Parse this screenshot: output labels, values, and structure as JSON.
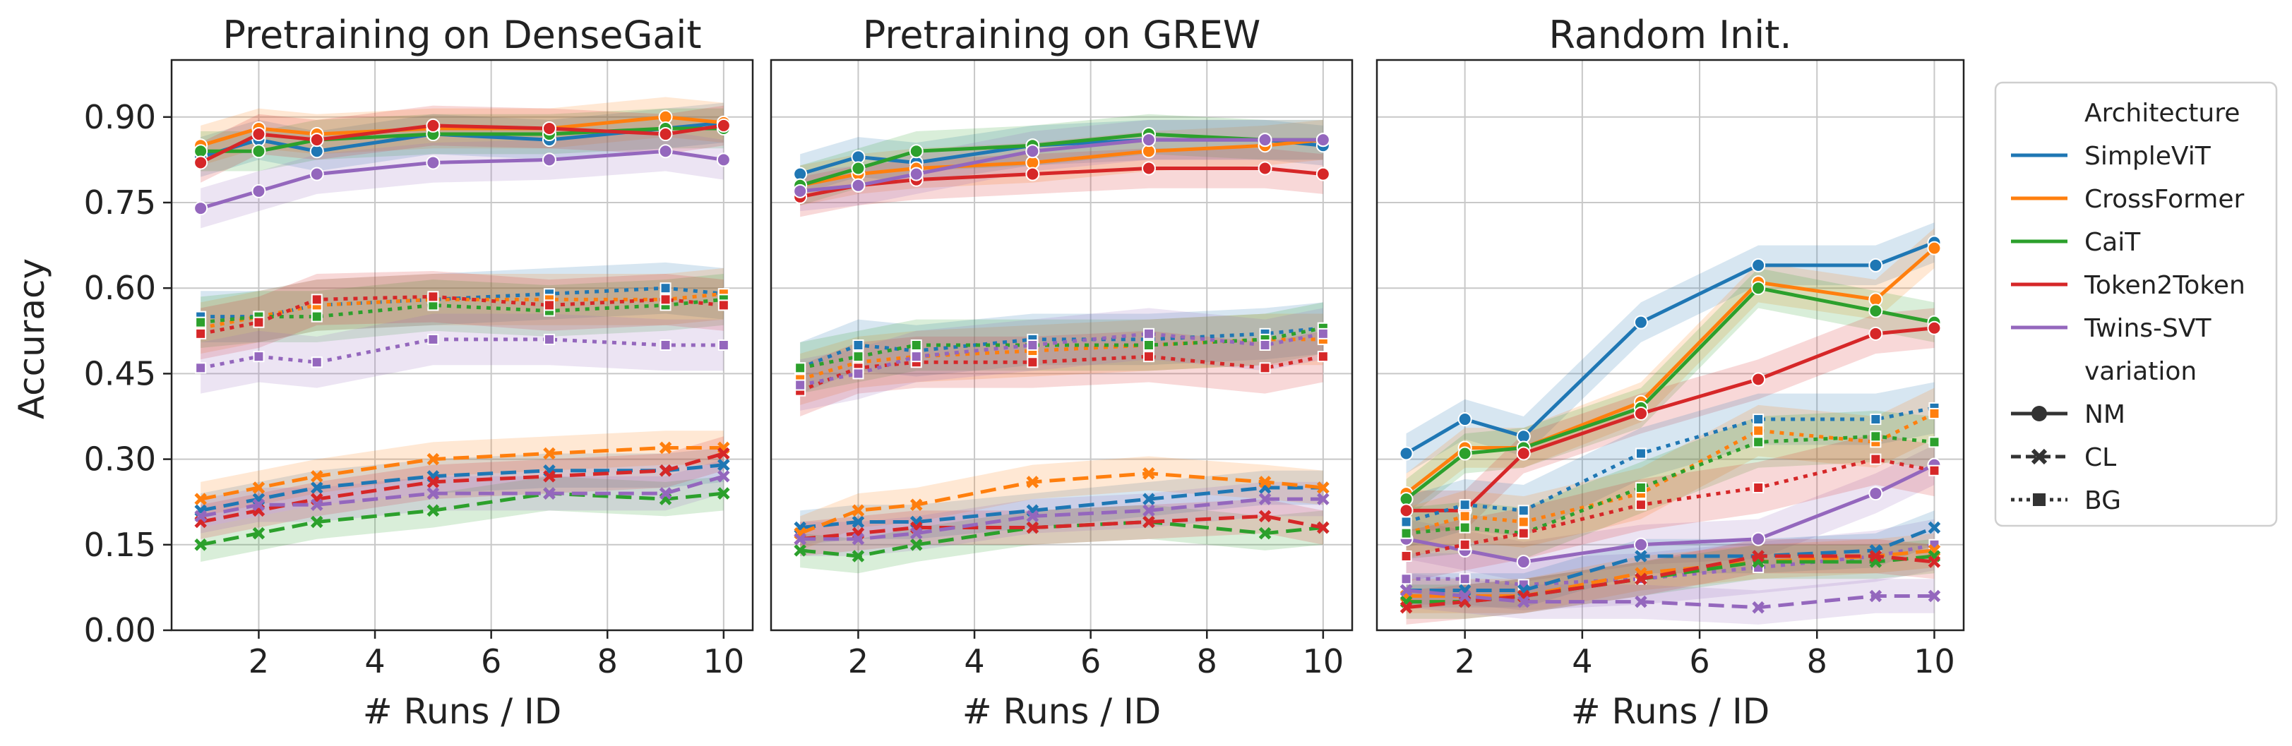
{
  "chart_data": {
    "type": "line",
    "ylabel": "Accuracy",
    "xlabel": "# Runs / ID",
    "x": [
      1,
      2,
      3,
      5,
      7,
      9,
      10
    ],
    "xticks": [
      "2",
      "4",
      "6",
      "8",
      "10"
    ],
    "xlim": [
      0.5,
      10.5
    ],
    "ylim": [
      0.0,
      1.0
    ],
    "yticks": [
      "0.00",
      "0.15",
      "0.30",
      "0.45",
      "0.60",
      "0.75",
      "0.90"
    ],
    "colors": {
      "SimpleViT": "#1f77b4",
      "CrossFormer": "#ff7f0e",
      "CaiT": "#2ca02c",
      "Token2Token": "#d62728",
      "Twins-SVT": "#9467bd"
    },
    "legend": {
      "architecture_title": "Architecture",
      "architectures": [
        "SimpleViT",
        "CrossFormer",
        "CaiT",
        "Token2Token",
        "Twins-SVT"
      ],
      "variation_title": "variation",
      "variations": [
        "NM",
        "CL",
        "BG"
      ]
    },
    "panels": [
      {
        "title": "Pretraining on DenseGait",
        "series": [
          {
            "arch": "SimpleViT",
            "variation": "NM",
            "values": [
              0.83,
              0.86,
              0.84,
              0.87,
              0.86,
              0.88,
              0.89
            ]
          },
          {
            "arch": "CrossFormer",
            "variation": "NM",
            "values": [
              0.85,
              0.88,
              0.87,
              0.88,
              0.88,
              0.9,
              0.89
            ]
          },
          {
            "arch": "CaiT",
            "variation": "NM",
            "values": [
              0.84,
              0.84,
              0.86,
              0.87,
              0.87,
              0.88,
              0.88
            ]
          },
          {
            "arch": "Token2Token",
            "variation": "NM",
            "values": [
              0.82,
              0.87,
              0.86,
              0.885,
              0.88,
              0.87,
              0.885
            ]
          },
          {
            "arch": "Twins-SVT",
            "variation": "NM",
            "values": [
              0.74,
              0.77,
              0.8,
              0.82,
              0.825,
              0.84,
              0.825
            ]
          },
          {
            "arch": "SimpleViT",
            "variation": "BG",
            "values": [
              0.55,
              0.55,
              0.57,
              0.58,
              0.59,
              0.6,
              0.59
            ]
          },
          {
            "arch": "CrossFormer",
            "variation": "BG",
            "values": [
              0.53,
              0.55,
              0.57,
              0.58,
              0.58,
              0.58,
              0.59
            ]
          },
          {
            "arch": "CaiT",
            "variation": "BG",
            "values": [
              0.54,
              0.55,
              0.55,
              0.57,
              0.56,
              0.57,
              0.58
            ]
          },
          {
            "arch": "Token2Token",
            "variation": "BG",
            "values": [
              0.52,
              0.54,
              0.58,
              0.585,
              0.57,
              0.58,
              0.57
            ]
          },
          {
            "arch": "Twins-SVT",
            "variation": "BG",
            "values": [
              0.46,
              0.48,
              0.47,
              0.51,
              0.51,
              0.5,
              0.5
            ]
          },
          {
            "arch": "SimpleViT",
            "variation": "CL",
            "values": [
              0.21,
              0.23,
              0.25,
              0.27,
              0.28,
              0.28,
              0.29
            ]
          },
          {
            "arch": "CrossFormer",
            "variation": "CL",
            "values": [
              0.23,
              0.25,
              0.27,
              0.3,
              0.31,
              0.32,
              0.32
            ]
          },
          {
            "arch": "CaiT",
            "variation": "CL",
            "values": [
              0.15,
              0.17,
              0.19,
              0.21,
              0.24,
              0.23,
              0.24
            ]
          },
          {
            "arch": "Token2Token",
            "variation": "CL",
            "values": [
              0.19,
              0.21,
              0.23,
              0.26,
              0.27,
              0.28,
              0.31
            ]
          },
          {
            "arch": "Twins-SVT",
            "variation": "CL",
            "values": [
              0.2,
              0.22,
              0.22,
              0.24,
              0.24,
              0.24,
              0.27
            ]
          }
        ]
      },
      {
        "title": "Pretraining on GREW",
        "series": [
          {
            "arch": "SimpleViT",
            "variation": "NM",
            "values": [
              0.8,
              0.83,
              0.82,
              0.85,
              0.86,
              0.86,
              0.85
            ]
          },
          {
            "arch": "CrossFormer",
            "variation": "NM",
            "values": [
              0.78,
              0.8,
              0.81,
              0.82,
              0.84,
              0.85,
              0.86
            ]
          },
          {
            "arch": "CaiT",
            "variation": "NM",
            "values": [
              0.78,
              0.81,
              0.84,
              0.85,
              0.87,
              0.86,
              0.86
            ]
          },
          {
            "arch": "Token2Token",
            "variation": "NM",
            "values": [
              0.76,
              0.78,
              0.79,
              0.8,
              0.81,
              0.81,
              0.8
            ]
          },
          {
            "arch": "Twins-SVT",
            "variation": "NM",
            "values": [
              0.77,
              0.78,
              0.8,
              0.84,
              0.86,
              0.86,
              0.86
            ]
          },
          {
            "arch": "SimpleViT",
            "variation": "BG",
            "values": [
              0.46,
              0.5,
              0.49,
              0.51,
              0.51,
              0.52,
              0.53
            ]
          },
          {
            "arch": "CrossFormer",
            "variation": "BG",
            "values": [
              0.44,
              0.47,
              0.48,
              0.49,
              0.5,
              0.51,
              0.51
            ]
          },
          {
            "arch": "CaiT",
            "variation": "BG",
            "values": [
              0.46,
              0.48,
              0.5,
              0.5,
              0.5,
              0.51,
              0.53
            ]
          },
          {
            "arch": "Token2Token",
            "variation": "BG",
            "values": [
              0.42,
              0.46,
              0.47,
              0.47,
              0.48,
              0.46,
              0.48
            ]
          },
          {
            "arch": "Twins-SVT",
            "variation": "BG",
            "values": [
              0.43,
              0.45,
              0.48,
              0.5,
              0.52,
              0.5,
              0.52
            ]
          },
          {
            "arch": "SimpleViT",
            "variation": "CL",
            "values": [
              0.18,
              0.19,
              0.19,
              0.21,
              0.23,
              0.25,
              0.25
            ]
          },
          {
            "arch": "CrossFormer",
            "variation": "CL",
            "values": [
              0.17,
              0.21,
              0.22,
              0.26,
              0.275,
              0.26,
              0.25
            ]
          },
          {
            "arch": "CaiT",
            "variation": "CL",
            "values": [
              0.14,
              0.13,
              0.15,
              0.18,
              0.19,
              0.17,
              0.18
            ]
          },
          {
            "arch": "Token2Token",
            "variation": "CL",
            "values": [
              0.16,
              0.17,
              0.18,
              0.18,
              0.19,
              0.2,
              0.18
            ]
          },
          {
            "arch": "Twins-SVT",
            "variation": "CL",
            "values": [
              0.16,
              0.16,
              0.17,
              0.2,
              0.21,
              0.23,
              0.23
            ]
          }
        ]
      },
      {
        "title": "Random Init.",
        "series": [
          {
            "arch": "SimpleViT",
            "variation": "NM",
            "values": [
              0.31,
              0.37,
              0.34,
              0.54,
              0.64,
              0.64,
              0.68
            ]
          },
          {
            "arch": "CrossFormer",
            "variation": "NM",
            "values": [
              0.24,
              0.32,
              0.32,
              0.4,
              0.61,
              0.58,
              0.67
            ]
          },
          {
            "arch": "CaiT",
            "variation": "NM",
            "values": [
              0.23,
              0.31,
              0.32,
              0.39,
              0.6,
              0.56,
              0.54
            ]
          },
          {
            "arch": "Token2Token",
            "variation": "NM",
            "values": [
              0.21,
              0.21,
              0.31,
              0.38,
              0.44,
              0.52,
              0.53
            ]
          },
          {
            "arch": "Twins-SVT",
            "variation": "NM",
            "values": [
              0.16,
              0.14,
              0.12,
              0.15,
              0.16,
              0.24,
              0.29
            ]
          },
          {
            "arch": "SimpleViT",
            "variation": "BG",
            "values": [
              0.19,
              0.22,
              0.21,
              0.31,
              0.37,
              0.37,
              0.39
            ]
          },
          {
            "arch": "CrossFormer",
            "variation": "BG",
            "values": [
              0.17,
              0.2,
              0.19,
              0.24,
              0.35,
              0.33,
              0.38
            ]
          },
          {
            "arch": "CaiT",
            "variation": "BG",
            "values": [
              0.17,
              0.18,
              0.17,
              0.25,
              0.33,
              0.34,
              0.33
            ]
          },
          {
            "arch": "Token2Token",
            "variation": "BG",
            "values": [
              0.13,
              0.15,
              0.17,
              0.22,
              0.25,
              0.3,
              0.28
            ]
          },
          {
            "arch": "Twins-SVT",
            "variation": "BG",
            "values": [
              0.09,
              0.09,
              0.08,
              0.09,
              0.11,
              0.13,
              0.15
            ]
          },
          {
            "arch": "SimpleViT",
            "variation": "CL",
            "values": [
              0.07,
              0.07,
              0.07,
              0.13,
              0.13,
              0.14,
              0.18
            ]
          },
          {
            "arch": "CrossFormer",
            "variation": "CL",
            "values": [
              0.06,
              0.06,
              0.06,
              0.1,
              0.12,
              0.13,
              0.14
            ]
          },
          {
            "arch": "CaiT",
            "variation": "CL",
            "values": [
              0.05,
              0.05,
              0.06,
              0.09,
              0.12,
              0.12,
              0.13
            ]
          },
          {
            "arch": "Token2Token",
            "variation": "CL",
            "values": [
              0.04,
              0.05,
              0.06,
              0.09,
              0.13,
              0.13,
              0.12
            ]
          },
          {
            "arch": "Twins-SVT",
            "variation": "CL",
            "values": [
              0.07,
              0.06,
              0.05,
              0.05,
              0.04,
              0.06,
              0.06
            ]
          }
        ]
      }
    ]
  }
}
